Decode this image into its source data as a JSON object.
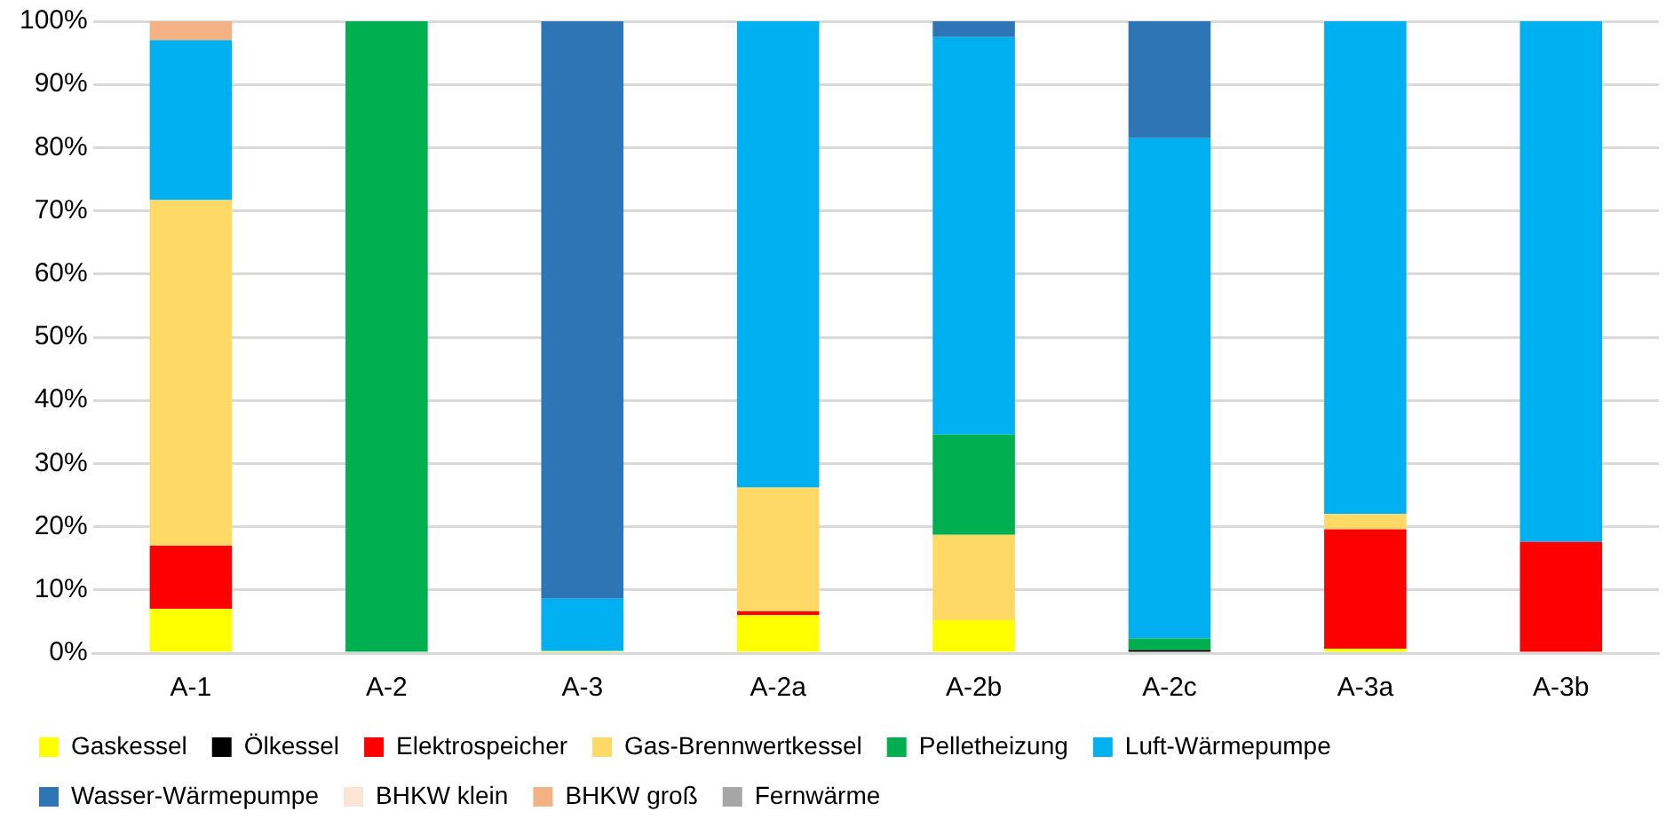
{
  "chart_data": {
    "type": "bar",
    "stacked": true,
    "categories": [
      "A-1",
      "A-2",
      "A-3",
      "A-2a",
      "A-2b",
      "A-2c",
      "A-3a",
      "A-3b"
    ],
    "series": [
      {
        "name": "Gaskessel",
        "color": "#ffff00",
        "values": [
          7,
          0,
          0.3,
          6,
          5.2,
          0,
          0.7,
          0
        ]
      },
      {
        "name": "Ölkessel",
        "color": "#000000",
        "values": [
          0,
          0,
          0,
          0,
          0,
          0.5,
          0,
          0
        ]
      },
      {
        "name": "Elektrospeicher",
        "color": "#ff0000",
        "values": [
          10,
          0,
          0,
          0.6,
          0,
          0,
          18.9,
          17.6
        ]
      },
      {
        "name": "Gas-Brennwertkessel",
        "color": "#ffd966",
        "values": [
          54.7,
          0,
          0,
          19.6,
          13.5,
          0,
          2.4,
          0
        ]
      },
      {
        "name": "Pelletheizung",
        "color": "#00b050",
        "values": [
          0,
          100,
          0,
          0,
          15.9,
          1.8,
          0,
          0
        ]
      },
      {
        "name": "Luft-Wärmepumpe",
        "color": "#00b0f0",
        "values": [
          25.3,
          0,
          8.3,
          73.8,
          62.9,
          79.2,
          78,
          82.4
        ]
      },
      {
        "name": "Wasser-Wärmepumpe",
        "color": "#2e75b6",
        "values": [
          0,
          0,
          91.4,
          0,
          2.5,
          18.5,
          0,
          0
        ]
      },
      {
        "name": "BHKW klein",
        "color": "#fbe5d6",
        "values": [
          0,
          0,
          0,
          0,
          0,
          0,
          0,
          0
        ]
      },
      {
        "name": "BHKW groß",
        "color": "#f4b183",
        "values": [
          3,
          0,
          0,
          0,
          0,
          0,
          0,
          0
        ]
      },
      {
        "name": "Fernwärme",
        "color": "#a6a6a6",
        "values": [
          0,
          0,
          0,
          0,
          0,
          0,
          0,
          0
        ]
      }
    ],
    "ylim": [
      0,
      100
    ],
    "yticks": [
      {
        "value": 0,
        "label": "0%"
      },
      {
        "value": 10,
        "label": "10%"
      },
      {
        "value": 20,
        "label": "20%"
      },
      {
        "value": 30,
        "label": "30%"
      },
      {
        "value": 40,
        "label": "40%"
      },
      {
        "value": 50,
        "label": "50%"
      },
      {
        "value": 60,
        "label": "60%"
      },
      {
        "value": 70,
        "label": "70%"
      },
      {
        "value": 80,
        "label": "80%"
      },
      {
        "value": 90,
        "label": "90%"
      },
      {
        "value": 100,
        "label": "100%"
      }
    ],
    "grid": "y",
    "legend": "bottom"
  }
}
